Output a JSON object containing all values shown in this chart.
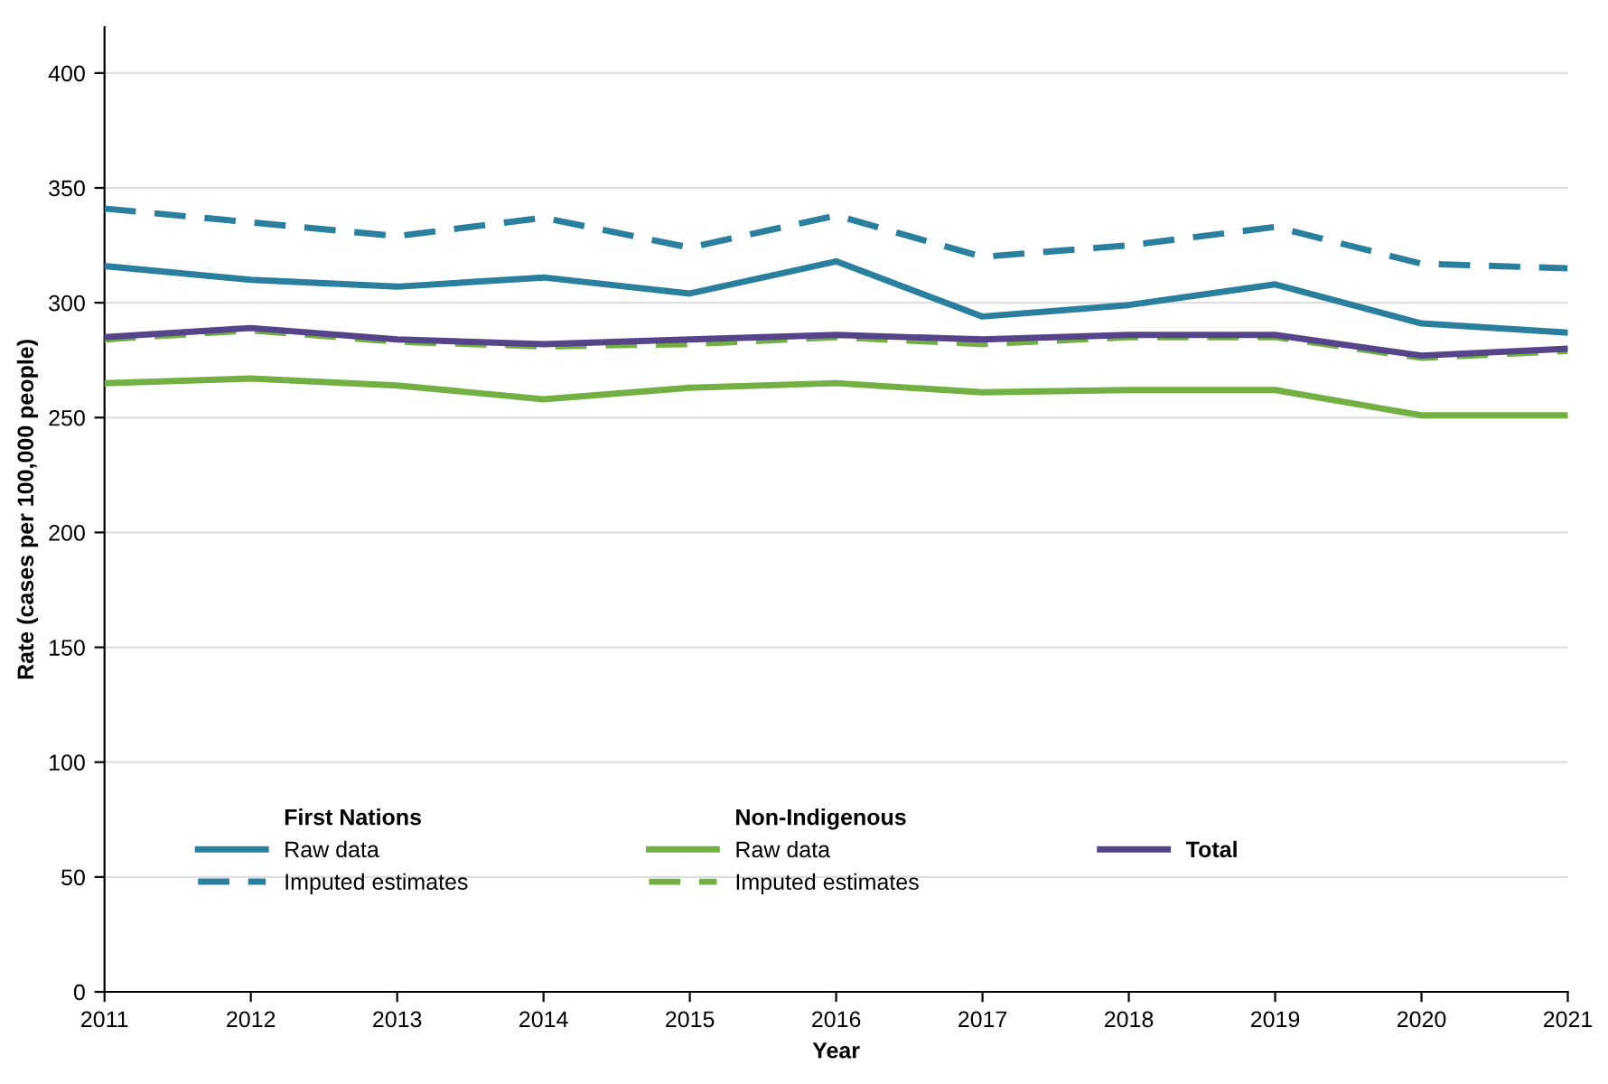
{
  "chart_data": {
    "type": "line",
    "xlabel": "Year",
    "ylabel": "Rate (cases per 100,000 people)",
    "x": [
      2011,
      2012,
      2013,
      2014,
      2015,
      2016,
      2017,
      2018,
      2019,
      2020,
      2021
    ],
    "xlim": [
      2011,
      2021
    ],
    "xticks": [
      2011,
      2012,
      2013,
      2014,
      2015,
      2016,
      2017,
      2018,
      2019,
      2020,
      2021
    ],
    "ylim": [
      0,
      420
    ],
    "yticks": [
      0,
      50,
      100,
      150,
      200,
      250,
      300,
      350,
      400
    ],
    "grid": "y",
    "legend": "bottom left",
    "marker": "none",
    "annotations": [
      "First Nations",
      "Non-Indigenous"
    ],
    "series": [
      {
        "name": "Raw data",
        "color": "#2a7f9e",
        "line_style": "solid",
        "values": [
          316,
          310,
          307,
          311,
          304,
          318,
          294,
          299,
          308,
          291,
          287
        ]
      },
      {
        "name": "Imputed estimates",
        "color": "#2a7f9e",
        "line_style": "dashed",
        "values": [
          341,
          335,
          329,
          337,
          324,
          338,
          320,
          325,
          333,
          317,
          315
        ]
      },
      {
        "name": "Raw data",
        "color": "#72b043",
        "line_style": "solid",
        "values": [
          265,
          267,
          264,
          258,
          263,
          265,
          261,
          262,
          262,
          251,
          251
        ]
      },
      {
        "name": "Imputed estimates",
        "color": "#72b043",
        "line_style": "dashed",
        "values": [
          284,
          288,
          283,
          281,
          282,
          285,
          282,
          285,
          285,
          276,
          279
        ]
      },
      {
        "name": "Total",
        "color": "#55448a",
        "line_style": "solid",
        "values": [
          285,
          289,
          284,
          282,
          284,
          286,
          284,
          286,
          286,
          277,
          280
        ]
      }
    ]
  }
}
